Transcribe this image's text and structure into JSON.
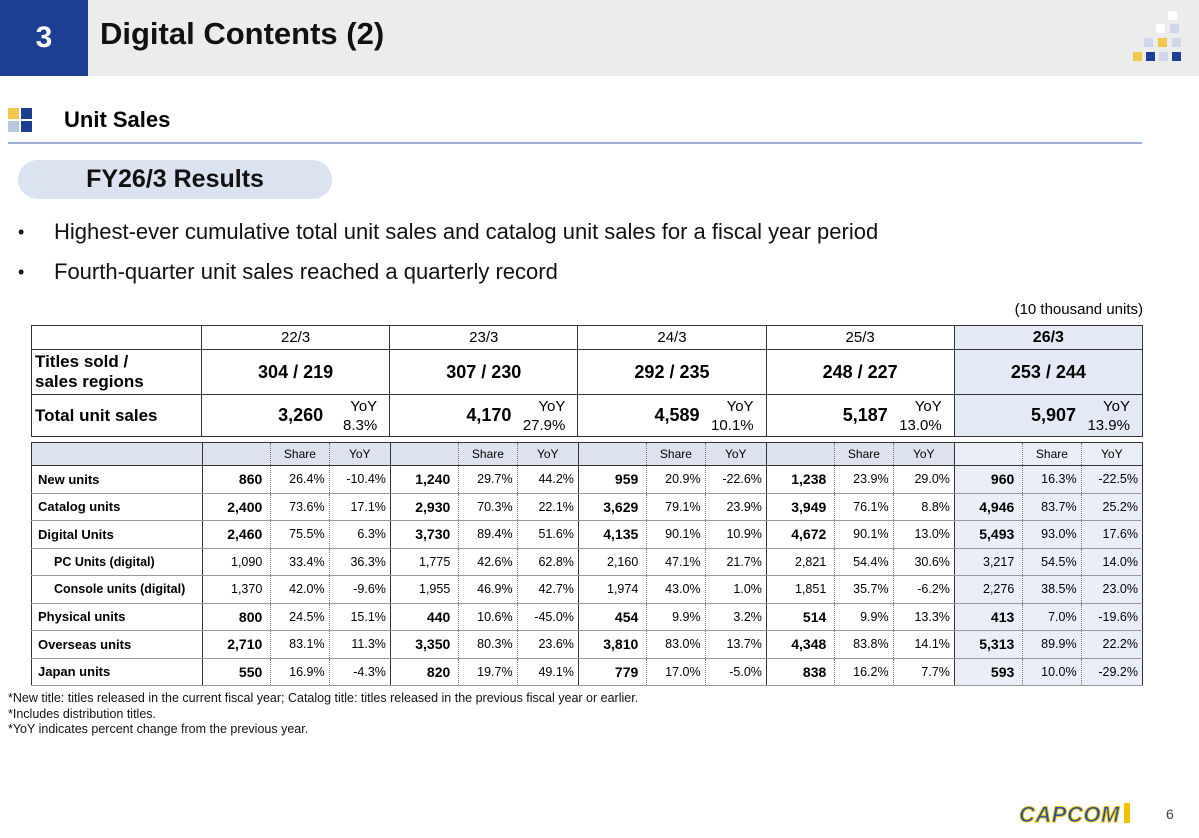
{
  "header": {
    "section_number": "3",
    "title": "Digital Contents (2)"
  },
  "section": {
    "title": "Unit Sales"
  },
  "pill": "FY26/3 Results",
  "bullets": [
    "Highest-ever cumulative total unit sales and catalog unit sales for a fiscal year period",
    "Fourth-quarter unit sales reached a quarterly record"
  ],
  "unit_note": "(10 thousand units)",
  "summary": {
    "row_titles_label_1": "Titles sold /",
    "row_titles_label_2": "sales regions",
    "row_total_label": "Total unit sales",
    "yoy_label": "YoY",
    "years": [
      {
        "year": "22/3",
        "titles": "304 / 219",
        "total": "3,260",
        "yoy": "8.3%"
      },
      {
        "year": "23/3",
        "titles": "307 / 230",
        "total": "4,170",
        "yoy": "27.9%"
      },
      {
        "year": "24/3",
        "titles": "292 / 235",
        "total": "4,589",
        "yoy": "10.1%"
      },
      {
        "year": "25/3",
        "titles": "248 / 227",
        "total": "5,187",
        "yoy": "13.0%"
      },
      {
        "year": "26/3",
        "titles": "253 / 244",
        "total": "5,907",
        "yoy": "13.9%"
      }
    ]
  },
  "detail": {
    "share_label": "Share",
    "yoy_label": "YoY",
    "rows": [
      {
        "label": "New units",
        "sub": false,
        "cells": [
          [
            "860",
            "26.4%",
            "-10.4%"
          ],
          [
            "1,240",
            "29.7%",
            "44.2%"
          ],
          [
            "959",
            "20.9%",
            "-22.6%"
          ],
          [
            "1,238",
            "23.9%",
            "29.0%"
          ],
          [
            "960",
            "16.3%",
            "-22.5%"
          ]
        ]
      },
      {
        "label": "Catalog units",
        "sub": false,
        "cells": [
          [
            "2,400",
            "73.6%",
            "17.1%"
          ],
          [
            "2,930",
            "70.3%",
            "22.1%"
          ],
          [
            "3,629",
            "79.1%",
            "23.9%"
          ],
          [
            "3,949",
            "76.1%",
            "8.8%"
          ],
          [
            "4,946",
            "83.7%",
            "25.2%"
          ]
        ]
      },
      {
        "label": "Digital Units",
        "sub": false,
        "cells": [
          [
            "2,460",
            "75.5%",
            "6.3%"
          ],
          [
            "3,730",
            "89.4%",
            "51.6%"
          ],
          [
            "4,135",
            "90.1%",
            "10.9%"
          ],
          [
            "4,672",
            "90.1%",
            "13.0%"
          ],
          [
            "5,493",
            "93.0%",
            "17.6%"
          ]
        ]
      },
      {
        "label": "PC Units (digital)",
        "sub": true,
        "cells": [
          [
            "1,090",
            "33.4%",
            "36.3%"
          ],
          [
            "1,775",
            "42.6%",
            "62.8%"
          ],
          [
            "2,160",
            "47.1%",
            "21.7%"
          ],
          [
            "2,821",
            "54.4%",
            "30.6%"
          ],
          [
            "3,217",
            "54.5%",
            "14.0%"
          ]
        ]
      },
      {
        "label": "Console units (digital)",
        "sub": true,
        "cells": [
          [
            "1,370",
            "42.0%",
            "-9.6%"
          ],
          [
            "1,955",
            "46.9%",
            "42.7%"
          ],
          [
            "1,974",
            "43.0%",
            "1.0%"
          ],
          [
            "1,851",
            "35.7%",
            "-6.2%"
          ],
          [
            "2,276",
            "38.5%",
            "23.0%"
          ]
        ]
      },
      {
        "label": "Physical units",
        "sub": false,
        "cells": [
          [
            "800",
            "24.5%",
            "15.1%"
          ],
          [
            "440",
            "10.6%",
            "-45.0%"
          ],
          [
            "454",
            "9.9%",
            "3.2%"
          ],
          [
            "514",
            "9.9%",
            "13.3%"
          ],
          [
            "413",
            "7.0%",
            "-19.6%"
          ]
        ]
      },
      {
        "label": "Overseas units",
        "sub": false,
        "cells": [
          [
            "2,710",
            "83.1%",
            "11.3%"
          ],
          [
            "3,350",
            "80.3%",
            "23.6%"
          ],
          [
            "3,810",
            "83.0%",
            "13.7%"
          ],
          [
            "4,348",
            "83.8%",
            "14.1%"
          ],
          [
            "5,313",
            "89.9%",
            "22.2%"
          ]
        ]
      },
      {
        "label": "Japan units",
        "sub": false,
        "cells": [
          [
            "550",
            "16.9%",
            "-4.3%"
          ],
          [
            "820",
            "19.7%",
            "49.1%"
          ],
          [
            "779",
            "17.0%",
            "-5.0%"
          ],
          [
            "838",
            "16.2%",
            "7.7%"
          ],
          [
            "593",
            "10.0%",
            "-29.2%"
          ]
        ]
      }
    ]
  },
  "footnotes": [
    "*New title: titles released in the current fiscal year; Catalog title: titles released in the previous fiscal year or earlier.",
    "*Includes distribution titles.",
    "*YoY indicates percent change from the previous year."
  ],
  "footer": {
    "logo_text": "CAPCOM",
    "page_number": "6"
  },
  "colors": {
    "header_blue": "#1c3f94",
    "highlight": "#e4eaf5",
    "pill_bg": "#dbe2f0",
    "logo_blue": "#1f4fb0",
    "logo_yellow": "#f2c200"
  }
}
